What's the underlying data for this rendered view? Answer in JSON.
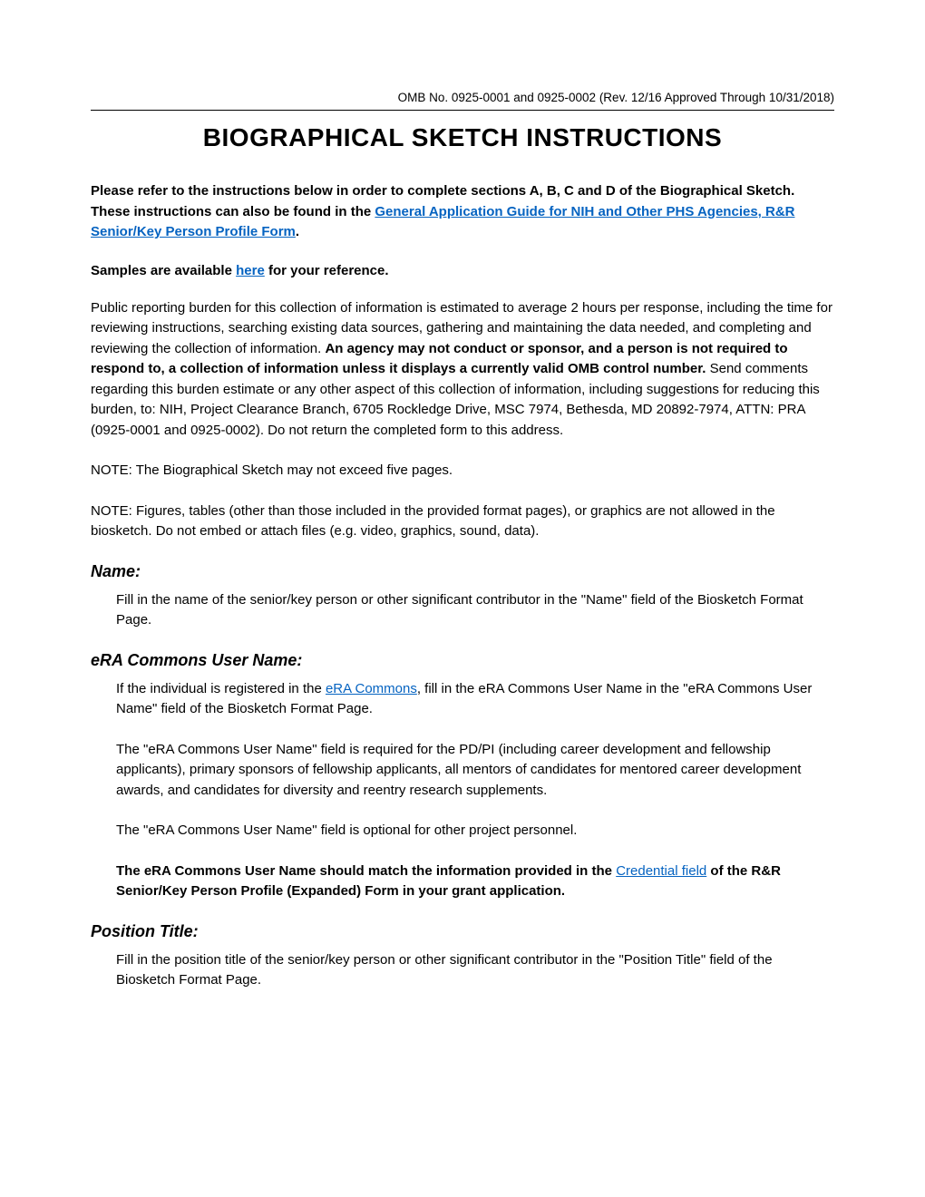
{
  "header": {
    "omb": "OMB No. 0925-0001 and 0925-0002 (Rev. 12/16 Approved Through 10/31/2018)"
  },
  "title": "BIOGRAPHICAL SKETCH INSTRUCTIONS",
  "intro": {
    "prefix": "Please refer to the instructions below in order to complete sections A, B, C and D of the Biographical Sketch. These instructions can also be found in the ",
    "link": "General Application Guide for NIH and Other PHS Agencies, R&R Senior/Key Person Profile Form",
    "suffix": "."
  },
  "samples": {
    "prefix": "Samples are available ",
    "link": "here",
    "suffix": " for your reference."
  },
  "burden": {
    "part1": "Public reporting burden for this collection of information is estimated to average 2 hours per response, including the time for reviewing instructions, searching existing data sources, gathering and maintaining the data needed, and completing and reviewing the collection of information. ",
    "bold": "An agency may not conduct or sponsor, and a person is not required to respond to, a collection of information unless it displays a currently valid OMB control number.",
    "part2": " Send comments regarding this burden estimate or any other aspect of this collection of information, including suggestions for reducing this burden, to: NIH, Project Clearance Branch, 6705 Rockledge Drive, MSC 7974, Bethesda, MD 20892-7974, ATTN: PRA (0925-0001 and 0925-0002). Do not return the completed form to this address."
  },
  "note1": "NOTE: The Biographical Sketch may not exceed five pages.",
  "note2": "NOTE: Figures, tables (other than those included in the provided format pages), or graphics are not allowed in the biosketch. Do not embed or attach files (e.g. video, graphics, sound, data).",
  "sections": {
    "name": {
      "heading": "Name:",
      "body": "Fill in the name of the senior/key person or other significant contributor in the \"Name\" field of the Biosketch Format Page."
    },
    "era": {
      "heading": "eRA Commons User Name:",
      "p1_prefix": "If the individual is registered in the ",
      "p1_link": "eRA Commons",
      "p1_suffix": ", fill in the eRA Commons User Name in the \"eRA Commons User Name\" field of the Biosketch Format Page.",
      "p2": "The \"eRA Commons User Name\" field is required for the PD/PI (including career development and fellowship applicants), primary sponsors of fellowship applicants, all mentors of candidates for mentored career development awards, and candidates for diversity and reentry research supplements.",
      "p3": "The \"eRA Commons User Name\" field is optional for other project personnel.",
      "p4_bold_prefix": "The eRA Commons User Name should match the information provided in the ",
      "p4_link": "Credential field",
      "p4_bold_suffix": " of the R&R Senior/Key Person Profile (Expanded) Form in your grant application."
    },
    "position": {
      "heading": "Position Title:",
      "body": "Fill in the position title of the senior/key person or other significant contributor in the \"Position Title\" field of the Biosketch Format Page."
    }
  },
  "colors": {
    "text": "#000000",
    "link": "#0563c1",
    "background": "#ffffff"
  }
}
